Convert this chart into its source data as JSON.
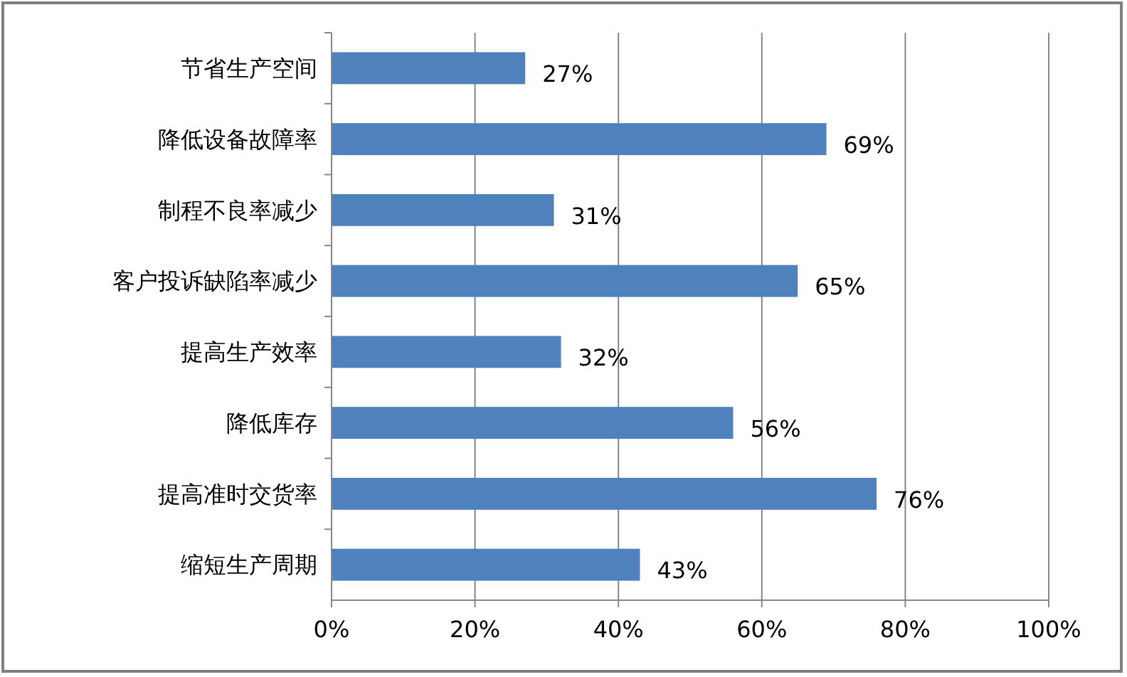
{
  "chart_data": {
    "type": "bar",
    "orientation": "horizontal",
    "categories": [
      "节省生产空间",
      "降低设备故障率",
      "制程不良率减少",
      "客户投诉缺陷率减少",
      "提高生产效率",
      "降低库存",
      "提高准时交货率",
      "缩短生产周期"
    ],
    "values": [
      27,
      69,
      31,
      65,
      32,
      56,
      76,
      43
    ],
    "value_labels": [
      "27%",
      "69%",
      "31%",
      "65%",
      "32%",
      "56%",
      "76%",
      "43%"
    ],
    "color": "#4f81bd",
    "xlim": [
      0,
      100
    ],
    "xticks": [
      {
        "value": 0,
        "label": "0%"
      },
      {
        "value": 20,
        "label": "20%"
      },
      {
        "value": 40,
        "label": "40%"
      },
      {
        "value": 60,
        "label": "60%"
      },
      {
        "value": 80,
        "label": "80%"
      },
      {
        "value": 100,
        "label": "100%"
      }
    ],
    "grid": "x"
  }
}
